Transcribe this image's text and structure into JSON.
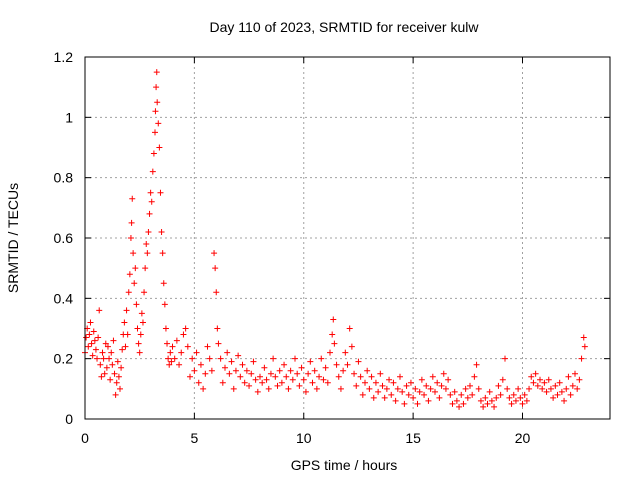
{
  "chart_data": {
    "type": "scatter",
    "title": "Day 110 of 2023, SRMTID for receiver kulw",
    "xlabel": "GPS time / hours",
    "ylabel": "SRMTID / TECUs",
    "xlim": [
      0,
      24
    ],
    "ylim": [
      0,
      1.2
    ],
    "xticks": [
      0,
      5,
      10,
      15,
      20
    ],
    "xtick_labels": [
      "0",
      "5",
      "10",
      "15",
      "20"
    ],
    "yticks": [
      0,
      0.2,
      0.4,
      0.6,
      0.8,
      1.0,
      1.2
    ],
    "ytick_labels": [
      "0",
      "0.2",
      "0.4",
      "0.6",
      "0.8",
      "1",
      "1.2"
    ],
    "grid": true,
    "marker": "+",
    "color": "#ff0000",
    "series": [
      {
        "name": "SRMTID",
        "points": [
          [
            0.0,
            0.22
          ],
          [
            0.05,
            0.27
          ],
          [
            0.1,
            0.3
          ],
          [
            0.15,
            0.24
          ],
          [
            0.2,
            0.28
          ],
          [
            0.25,
            0.32
          ],
          [
            0.3,
            0.25
          ],
          [
            0.35,
            0.21
          ],
          [
            0.4,
            0.29
          ],
          [
            0.45,
            0.26
          ],
          [
            0.5,
            0.23
          ],
          [
            0.55,
            0.2
          ],
          [
            0.6,
            0.27
          ],
          [
            0.65,
            0.36
          ],
          [
            0.7,
            0.18
          ],
          [
            0.75,
            0.14
          ],
          [
            0.8,
            0.22
          ],
          [
            0.85,
            0.2
          ],
          [
            0.9,
            0.15
          ],
          [
            0.95,
            0.25
          ],
          [
            1.0,
            0.17
          ],
          [
            1.05,
            0.24
          ],
          [
            1.1,
            0.2
          ],
          [
            1.15,
            0.13
          ],
          [
            1.2,
            0.22
          ],
          [
            1.25,
            0.18
          ],
          [
            1.3,
            0.26
          ],
          [
            1.35,
            0.15
          ],
          [
            1.4,
            0.08
          ],
          [
            1.45,
            0.12
          ],
          [
            1.5,
            0.19
          ],
          [
            1.55,
            0.14
          ],
          [
            1.6,
            0.1
          ],
          [
            1.65,
            0.17
          ],
          [
            1.7,
            0.23
          ],
          [
            1.75,
            0.28
          ],
          [
            1.8,
            0.32
          ],
          [
            1.85,
            0.24
          ],
          [
            1.9,
            0.36
          ],
          [
            1.95,
            0.28
          ],
          [
            2.0,
            0.42
          ],
          [
            2.05,
            0.48
          ],
          [
            2.1,
            0.6
          ],
          [
            2.13,
            0.65
          ],
          [
            2.16,
            0.73
          ],
          [
            2.2,
            0.55
          ],
          [
            2.25,
            0.45
          ],
          [
            2.3,
            0.5
          ],
          [
            2.35,
            0.38
          ],
          [
            2.4,
            0.3
          ],
          [
            2.45,
            0.25
          ],
          [
            2.5,
            0.22
          ],
          [
            2.55,
            0.28
          ],
          [
            2.6,
            0.35
          ],
          [
            2.65,
            0.32
          ],
          [
            2.7,
            0.42
          ],
          [
            2.75,
            0.5
          ],
          [
            2.8,
            0.58
          ],
          [
            2.85,
            0.55
          ],
          [
            2.9,
            0.62
          ],
          [
            2.95,
            0.68
          ],
          [
            3.0,
            0.75
          ],
          [
            3.05,
            0.72
          ],
          [
            3.1,
            0.82
          ],
          [
            3.15,
            0.88
          ],
          [
            3.2,
            0.95
          ],
          [
            3.22,
            1.02
          ],
          [
            3.25,
            1.1
          ],
          [
            3.28,
            1.15
          ],
          [
            3.3,
            1.05
          ],
          [
            3.35,
            0.98
          ],
          [
            3.4,
            0.9
          ],
          [
            3.45,
            0.75
          ],
          [
            3.5,
            0.62
          ],
          [
            3.55,
            0.55
          ],
          [
            3.6,
            0.45
          ],
          [
            3.65,
            0.38
          ],
          [
            3.7,
            0.3
          ],
          [
            3.75,
            0.25
          ],
          [
            3.8,
            0.2
          ],
          [
            3.85,
            0.18
          ],
          [
            3.9,
            0.22
          ],
          [
            3.95,
            0.19
          ],
          [
            4.0,
            0.24
          ],
          [
            4.1,
            0.2
          ],
          [
            4.2,
            0.26
          ],
          [
            4.3,
            0.18
          ],
          [
            4.4,
            0.22
          ],
          [
            4.5,
            0.28
          ],
          [
            4.6,
            0.3
          ],
          [
            4.7,
            0.24
          ],
          [
            4.8,
            0.14
          ],
          [
            4.9,
            0.2
          ],
          [
            5.0,
            0.16
          ],
          [
            5.1,
            0.22
          ],
          [
            5.2,
            0.12
          ],
          [
            5.3,
            0.18
          ],
          [
            5.4,
            0.1
          ],
          [
            5.5,
            0.15
          ],
          [
            5.6,
            0.24
          ],
          [
            5.7,
            0.2
          ],
          [
            5.8,
            0.16
          ],
          [
            5.9,
            0.55
          ],
          [
            5.95,
            0.5
          ],
          [
            6.0,
            0.42
          ],
          [
            6.05,
            0.3
          ],
          [
            6.1,
            0.25
          ],
          [
            6.2,
            0.2
          ],
          [
            6.3,
            0.12
          ],
          [
            6.4,
            0.17
          ],
          [
            6.5,
            0.22
          ],
          [
            6.6,
            0.15
          ],
          [
            6.7,
            0.19
          ],
          [
            6.8,
            0.1
          ],
          [
            6.9,
            0.16
          ],
          [
            7.0,
            0.21
          ],
          [
            7.1,
            0.14
          ],
          [
            7.2,
            0.18
          ],
          [
            7.3,
            0.12
          ],
          [
            7.4,
            0.16
          ],
          [
            7.5,
            0.11
          ],
          [
            7.6,
            0.15
          ],
          [
            7.7,
            0.19
          ],
          [
            7.8,
            0.13
          ],
          [
            7.9,
            0.09
          ],
          [
            8.0,
            0.14
          ],
          [
            8.1,
            0.12
          ],
          [
            8.2,
            0.17
          ],
          [
            8.3,
            0.13
          ],
          [
            8.4,
            0.1
          ],
          [
            8.5,
            0.15
          ],
          [
            8.6,
            0.2
          ],
          [
            8.7,
            0.14
          ],
          [
            8.8,
            0.11
          ],
          [
            8.9,
            0.16
          ],
          [
            9.0,
            0.12
          ],
          [
            9.1,
            0.18
          ],
          [
            9.2,
            0.14
          ],
          [
            9.3,
            0.1
          ],
          [
            9.4,
            0.16
          ],
          [
            9.5,
            0.13
          ],
          [
            9.6,
            0.2
          ],
          [
            9.7,
            0.15
          ],
          [
            9.8,
            0.11
          ],
          [
            9.9,
            0.17
          ],
          [
            10.0,
            0.13
          ],
          [
            10.1,
            0.09
          ],
          [
            10.2,
            0.15
          ],
          [
            10.3,
            0.19
          ],
          [
            10.4,
            0.12
          ],
          [
            10.5,
            0.16
          ],
          [
            10.6,
            0.1
          ],
          [
            10.7,
            0.14
          ],
          [
            10.8,
            0.2
          ],
          [
            10.9,
            0.13
          ],
          [
            11.0,
            0.17
          ],
          [
            11.1,
            0.12
          ],
          [
            11.2,
            0.22
          ],
          [
            11.3,
            0.28
          ],
          [
            11.35,
            0.33
          ],
          [
            11.4,
            0.25
          ],
          [
            11.5,
            0.18
          ],
          [
            11.6,
            0.14
          ],
          [
            11.7,
            0.1
          ],
          [
            11.8,
            0.16
          ],
          [
            11.9,
            0.22
          ],
          [
            12.0,
            0.18
          ],
          [
            12.1,
            0.3
          ],
          [
            12.2,
            0.24
          ],
          [
            12.3,
            0.15
          ],
          [
            12.4,
            0.11
          ],
          [
            12.5,
            0.19
          ],
          [
            12.6,
            0.14
          ],
          [
            12.7,
            0.08
          ],
          [
            12.8,
            0.12
          ],
          [
            12.9,
            0.16
          ],
          [
            13.0,
            0.1
          ],
          [
            13.1,
            0.14
          ],
          [
            13.2,
            0.07
          ],
          [
            13.3,
            0.12
          ],
          [
            13.4,
            0.09
          ],
          [
            13.5,
            0.15
          ],
          [
            13.6,
            0.11
          ],
          [
            13.7,
            0.07
          ],
          [
            13.8,
            0.1
          ],
          [
            13.9,
            0.13
          ],
          [
            14.0,
            0.08
          ],
          [
            14.1,
            0.12
          ],
          [
            14.2,
            0.06
          ],
          [
            14.3,
            0.1
          ],
          [
            14.4,
            0.14
          ],
          [
            14.5,
            0.09
          ],
          [
            14.6,
            0.05
          ],
          [
            14.7,
            0.11
          ],
          [
            14.8,
            0.08
          ],
          [
            14.9,
            0.12
          ],
          [
            15.0,
            0.07
          ],
          [
            15.1,
            0.1
          ],
          [
            15.2,
            0.05
          ],
          [
            15.3,
            0.09
          ],
          [
            15.4,
            0.13
          ],
          [
            15.5,
            0.08
          ],
          [
            15.6,
            0.11
          ],
          [
            15.7,
            0.06
          ],
          [
            15.8,
            0.1
          ],
          [
            15.9,
            0.14
          ],
          [
            16.0,
            0.09
          ],
          [
            16.1,
            0.12
          ],
          [
            16.2,
            0.07
          ],
          [
            16.3,
            0.11
          ],
          [
            16.4,
            0.15
          ],
          [
            16.5,
            0.1
          ],
          [
            16.6,
            0.13
          ],
          [
            16.7,
            0.08
          ],
          [
            16.8,
            0.05
          ],
          [
            16.9,
            0.09
          ],
          [
            17.0,
            0.06
          ],
          [
            17.1,
            0.04
          ],
          [
            17.2,
            0.08
          ],
          [
            17.3,
            0.05
          ],
          [
            17.4,
            0.1
          ],
          [
            17.5,
            0.07
          ],
          [
            17.6,
            0.11
          ],
          [
            17.7,
            0.08
          ],
          [
            17.8,
            0.14
          ],
          [
            17.9,
            0.18
          ],
          [
            18.0,
            0.1
          ],
          [
            18.1,
            0.06
          ],
          [
            18.2,
            0.04
          ],
          [
            18.3,
            0.07
          ],
          [
            18.4,
            0.05
          ],
          [
            18.5,
            0.09
          ],
          [
            18.6,
            0.06
          ],
          [
            18.7,
            0.04
          ],
          [
            18.8,
            0.07
          ],
          [
            18.9,
            0.11
          ],
          [
            19.0,
            0.08
          ],
          [
            19.1,
            0.13
          ],
          [
            19.2,
            0.2
          ],
          [
            19.3,
            0.1
          ],
          [
            19.4,
            0.07
          ],
          [
            19.5,
            0.05
          ],
          [
            19.6,
            0.08
          ],
          [
            19.7,
            0.06
          ],
          [
            19.8,
            0.1
          ],
          [
            19.9,
            0.07
          ],
          [
            20.0,
            0.05
          ],
          [
            20.1,
            0.08
          ],
          [
            20.2,
            0.06
          ],
          [
            20.3,
            0.1
          ],
          [
            20.4,
            0.14
          ],
          [
            20.5,
            0.12
          ],
          [
            20.6,
            0.15
          ],
          [
            20.7,
            0.11
          ],
          [
            20.8,
            0.13
          ],
          [
            20.9,
            0.1
          ],
          [
            21.0,
            0.12
          ],
          [
            21.1,
            0.09
          ],
          [
            21.2,
            0.13
          ],
          [
            21.3,
            0.1
          ],
          [
            21.4,
            0.07
          ],
          [
            21.5,
            0.11
          ],
          [
            21.6,
            0.08
          ],
          [
            21.7,
            0.12
          ],
          [
            21.8,
            0.09
          ],
          [
            21.9,
            0.06
          ],
          [
            22.0,
            0.1
          ],
          [
            22.1,
            0.14
          ],
          [
            22.2,
            0.08
          ],
          [
            22.3,
            0.11
          ],
          [
            22.4,
            0.15
          ],
          [
            22.5,
            0.1
          ],
          [
            22.6,
            0.13
          ],
          [
            22.7,
            0.2
          ],
          [
            22.8,
            0.27
          ],
          [
            22.85,
            0.24
          ]
        ]
      }
    ]
  }
}
